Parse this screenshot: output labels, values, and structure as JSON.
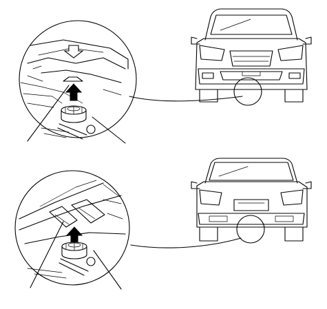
{
  "diagram": {
    "panels": [
      {
        "view": "front",
        "jack_arrow": "up-arrow-icon",
        "indicator": "down-arrow-icon"
      },
      {
        "view": "rear",
        "jack_arrow": "up-arrow-icon"
      }
    ],
    "colors": {
      "line": "#000000",
      "background": "#ffffff"
    }
  }
}
